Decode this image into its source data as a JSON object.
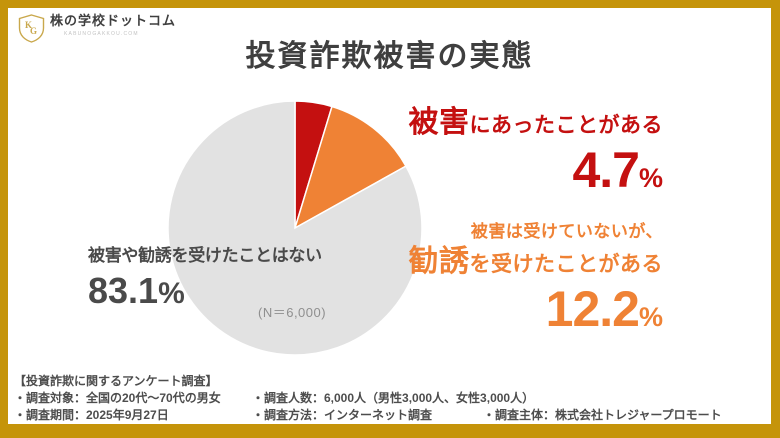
{
  "frame": {
    "border_color": "#C5940A",
    "background": "#FFFFFF"
  },
  "logo": {
    "monogram": "KG",
    "name": "株の学校ドットコム",
    "tagline": "KABUNOGAKKOU.COM"
  },
  "title": "投資詐欺被害の実態",
  "chart_data": {
    "type": "pie",
    "title": "投資詐欺被害の実態",
    "n_label": "(N＝6,000)",
    "start_angle_deg": 0,
    "direction": "clockwise",
    "center_note": "sample size shown inside gray slice",
    "slices": [
      {
        "label": "被害にあったことがある",
        "value": 4.7,
        "color": "#C41010"
      },
      {
        "label": "被害は受けていないが、勧誘を受けたことがある",
        "value": 12.2,
        "color": "#EF8235"
      },
      {
        "label": "被害や勧誘を受けたことはない",
        "value": 83.1,
        "color": "#E2E2E2"
      }
    ]
  },
  "callouts": {
    "victim": {
      "emphasis": "被害",
      "rest": "にあったことがある",
      "value": "4.7",
      "unit": "%",
      "color": "#C41010"
    },
    "solicited": {
      "pre": "被害は受けていないが、",
      "emphasis": "勧誘",
      "rest": "を受けたことがある",
      "value": "12.2",
      "unit": "%",
      "color": "#EF8235"
    },
    "none": {
      "label": "被害や勧誘を受けたことはない",
      "value": "83.1",
      "unit": "%",
      "color": "#4A4A4A"
    }
  },
  "footer": {
    "heading": "【投資詐欺に関するアンケート調査】",
    "rows": [
      [
        "・調査対象：全国の20代～70代の男女",
        "・調査人数：6,000人（男性3,000人、女性3,000人）"
      ],
      [
        "・調査期間：2025年9月27日",
        "・調査方法：インターネット調査",
        "・調査主体：株式会社トレジャープロモート"
      ]
    ]
  }
}
